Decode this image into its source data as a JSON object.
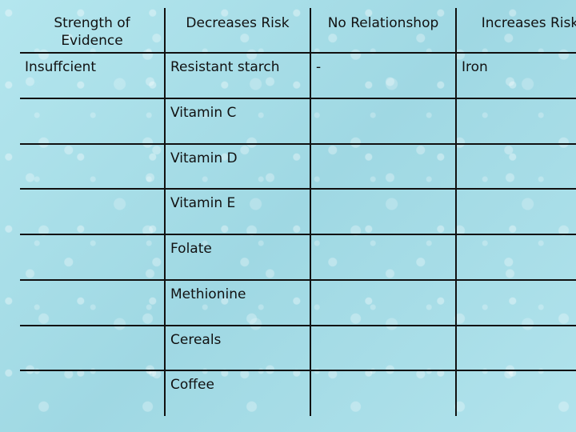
{
  "table": {
    "headers": {
      "strength": "Strength of Evidence",
      "decreases": "Decreases Risk",
      "no_relationship": "No Relationshop",
      "increases": "Increases Risk"
    },
    "rows": [
      {
        "strength": "Insuffcient",
        "decreases": "Resistant starch",
        "no_relationship": "-",
        "increases": "Iron"
      },
      {
        "strength": "",
        "decreases": "Vitamin C",
        "no_relationship": "",
        "increases": ""
      },
      {
        "strength": "",
        "decreases": "Vitamin D",
        "no_relationship": "",
        "increases": ""
      },
      {
        "strength": "",
        "decreases": "Vitamin E",
        "no_relationship": "",
        "increases": ""
      },
      {
        "strength": "",
        "decreases": "Folate",
        "no_relationship": "",
        "increases": ""
      },
      {
        "strength": "",
        "decreases": "Methionine",
        "no_relationship": "",
        "increases": ""
      },
      {
        "strength": "",
        "decreases": "Cereals",
        "no_relationship": "",
        "increases": ""
      },
      {
        "strength": "",
        "decreases": "Coffee",
        "no_relationship": "",
        "increases": ""
      }
    ]
  }
}
